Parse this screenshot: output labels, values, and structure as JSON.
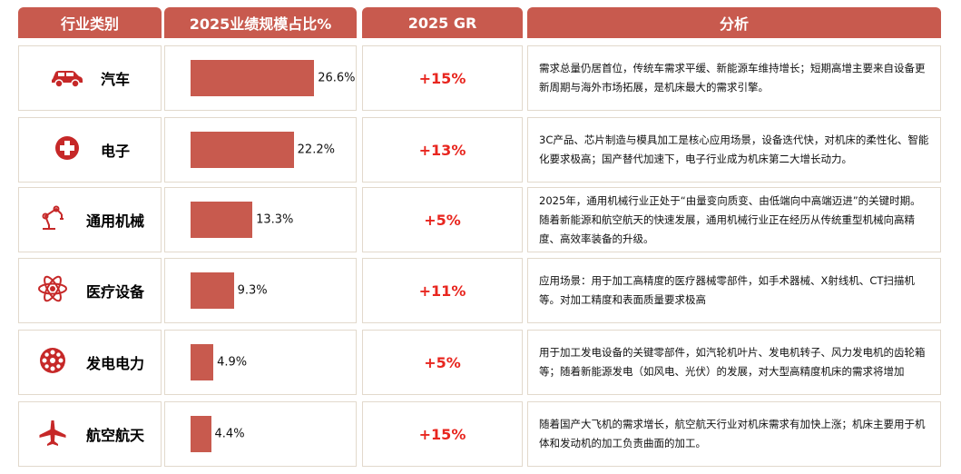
{
  "header": {
    "category": "行业类别",
    "share": "2025业绩规模占比%",
    "gr": "2025 GR",
    "analysis": "分析"
  },
  "colors": {
    "accent": "#c85a4e",
    "growth": "#e8261f",
    "icon": "#c62828"
  },
  "rows": [
    {
      "name": "汽车",
      "icon": "car-icon",
      "share": 26.6,
      "share_label": "26.6%",
      "gr": "+15%",
      "analysis": "需求总量仍居首位，传统车需求平缓、新能源车维持增长；短期高增主要来自设备更新周期与海外市场拓展，是机床最大的需求引擎。"
    },
    {
      "name": "电子",
      "icon": "medical-cross-icon",
      "share": 22.2,
      "share_label": "22.2%",
      "gr": "+13%",
      "analysis": "3C产品、芯片制造与模具加工是核心应用场景，设备迭代快，对机床的柔性化、智能化要求极高；国产替代加速下，电子行业成为机床第二大增长动力。"
    },
    {
      "name": "通用机械",
      "icon": "robot-arm-icon",
      "share": 13.3,
      "share_label": "13.3%",
      "gr": "+5%",
      "analysis": "2025年，通用机械行业正处于“由量变向质变、由低端向中高端迈进”的关键时期。随着新能源和航空航天的快速发展，通用机械行业正在经历从传统重型机械向高精度、高效率装备的升级。"
    },
    {
      "name": "医疗设备",
      "icon": "atom-icon",
      "share": 9.3,
      "share_label": "9.3%",
      "gr": "+11%",
      "analysis": "应用场景：用于加工高精度的医疗器械零部件，如手术器械、X射线机、CT扫描机等。对加工精度和表面质量要求极高"
    },
    {
      "name": "发电电力",
      "icon": "turbine-icon",
      "share": 4.9,
      "share_label": "4.9%",
      "gr": "+5%",
      "analysis": "用于加工发电设备的关键零部件，如汽轮机叶片、发电机转子、风力发电机的齿轮箱等；随着新能源发电（如风电、光伏）的发展，对大型高精度机床的需求将增加"
    },
    {
      "name": "航空航天",
      "icon": "airplane-icon",
      "share": 4.4,
      "share_label": "4.4%",
      "gr": "+15%",
      "analysis": "随着国产大飞机的需求增长，航空航天行业对机床需求有加快上涨；机床主要用于机体和发动机的加工负责曲面的加工。"
    }
  ]
}
